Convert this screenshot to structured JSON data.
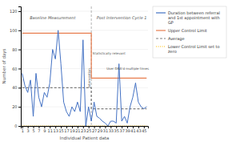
{
  "chart_data": {
    "type": "line",
    "x_label": "Individual Patient data",
    "y_label": "Number of days",
    "xlim": [
      0.5,
      46.5
    ],
    "xticks": [
      1,
      3,
      5,
      7,
      9,
      11,
      13,
      15,
      17,
      19,
      21,
      23,
      25,
      27,
      29,
      31,
      33,
      35,
      37,
      39,
      41,
      43,
      45
    ],
    "ylim": [
      0,
      125
    ],
    "yticks": [
      0,
      20,
      40,
      60,
      80,
      100,
      120
    ],
    "grid": true,
    "legend": "right",
    "series": [
      {
        "name": "Duration between referral\nand 1st appointment with\nGP",
        "color": "#4472c4",
        "line_style": "solid",
        "x": [
          1,
          2,
          3,
          4,
          5,
          6,
          7,
          8,
          9,
          10,
          11,
          12,
          13,
          14,
          15,
          16,
          17,
          18,
          19,
          20,
          21,
          22,
          23,
          24,
          25,
          26,
          27,
          28,
          29,
          30,
          31,
          32,
          33,
          34,
          35,
          36,
          37,
          38,
          39,
          40,
          41,
          42,
          43,
          44,
          45,
          46
        ],
        "values": [
          55,
          42,
          35,
          48,
          10,
          55,
          30,
          20,
          35,
          30,
          45,
          80,
          70,
          100,
          65,
          25,
          15,
          10,
          20,
          15,
          25,
          15,
          90,
          0,
          20,
          5,
          25,
          10,
          8,
          5,
          3,
          0,
          5,
          5,
          3,
          65,
          5,
          10,
          3,
          20,
          30,
          45,
          25,
          20,
          18,
          20
        ]
      },
      {
        "name": "Upper Control Limit",
        "color": "#e87d4e",
        "line_style": "solid",
        "x": [
          1,
          26,
          26,
          46
        ],
        "values": [
          97,
          97,
          50,
          50
        ]
      },
      {
        "name": "Average",
        "color": "#808080",
        "line_style": "dashed",
        "x": [
          1,
          26,
          26,
          46
        ],
        "values": [
          40,
          40,
          18,
          18
        ]
      },
      {
        "name": "Lower Control Limit set to\nzero",
        "color": "#ffc000",
        "line_style": "dotted",
        "x": [
          1,
          46
        ],
        "values": [
          0,
          0
        ]
      }
    ],
    "section_titles": [
      {
        "text": "Baseline Measurement",
        "x": 12,
        "y": 115
      },
      {
        "text": "Post Intervention Cycle 1",
        "x": 37,
        "y": 115
      }
    ],
    "annotations": [
      {
        "text": "Statistically relevant",
        "x": 26.5,
        "y": 75.66
      },
      {
        "text": "User DNA'd multiple times",
        "x": 31.5,
        "y": 60
      }
    ],
    "intervention": {
      "text": "Intervention",
      "x": 26,
      "y": 50,
      "color": "#808080"
    }
  }
}
